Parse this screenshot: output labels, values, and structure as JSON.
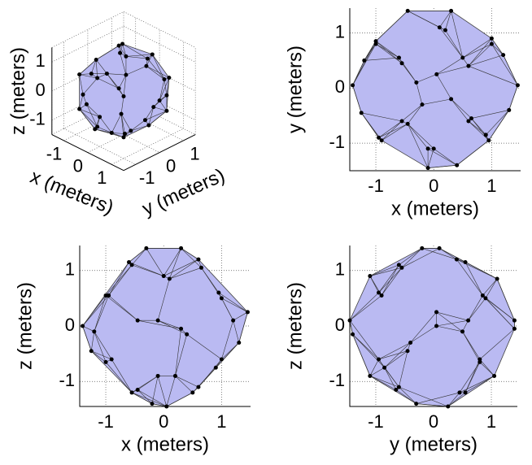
{
  "chart_data": [
    {
      "type": "scatter3d",
      "xlabel": "x (meters)",
      "ylabel": "y (meters)",
      "zlabel": "z (meters)",
      "x": [
        -1.4,
        1.45,
        -0.45,
        0.3,
        -0.1,
        0.4,
        -0.3,
        0.3,
        0.05,
        -0.2,
        1.0,
        -1.0,
        -0.95,
        0.95,
        1.0,
        -1.0,
        -0.9,
        0.9,
        0.6,
        -0.6,
        -0.55,
        0.65,
        0.5,
        -0.55,
        -0.45,
        0.6,
        1.3,
        -1.25,
        -1.2,
        1.2,
        0.1,
        0.0,
        0.2,
        -0.1
      ],
      "y": [
        0.05,
        0.05,
        1.4,
        1.4,
        -1.45,
        -1.4,
        0.1,
        -0.2,
        0.25,
        -0.3,
        0.9,
        0.85,
        -0.9,
        -0.95,
        0.8,
        0.8,
        -0.95,
        -0.85,
        0.4,
        0.55,
        -0.6,
        -0.55,
        0.55,
        0.45,
        -0.65,
        -0.6,
        -0.4,
        -0.45,
        0.5,
        0.6,
        1.1,
        -1.1,
        1.05,
        -1.1
      ],
      "z": [
        0.0,
        0.25,
        0.1,
        -0.05,
        0.1,
        -0.15,
        1.4,
        1.4,
        -1.45,
        -1.4,
        0.5,
        0.55,
        0.55,
        0.6,
        -0.6,
        -0.65,
        -0.6,
        -0.75,
        1.2,
        1.15,
        1.1,
        1.05,
        -1.2,
        -1.2,
        -1.15,
        -1.1,
        -0.3,
        -0.45,
        -0.1,
        0.1,
        0.85,
        0.9,
        -0.9,
        -0.9
      ],
      "xlim": [
        -1.5,
        1.5
      ],
      "ylim": [
        -1.5,
        1.5
      ],
      "zlim": [
        -1.5,
        1.5
      ],
      "xticks": [
        -1,
        0,
        1
      ],
      "yticks": [
        -1,
        0,
        1
      ],
      "zticks": [
        -1,
        0,
        1
      ],
      "color": "#babaf2",
      "grid": true
    },
    {
      "type": "scatter",
      "xlabel": "x (meters)",
      "ylabel": "y (meters)",
      "x": [
        -1.4,
        1.45,
        -0.45,
        0.3,
        -0.1,
        0.4,
        -0.3,
        0.3,
        0.05,
        -0.2,
        1.0,
        -1.0,
        -0.95,
        0.95,
        1.0,
        -1.0,
        -0.9,
        0.9,
        0.6,
        -0.6,
        -0.55,
        0.65,
        0.5,
        -0.55,
        -0.45,
        0.6,
        1.3,
        -1.25,
        -1.2,
        1.2,
        0.1,
        0.0,
        0.2,
        -0.1
      ],
      "values": [
        0.05,
        0.05,
        1.4,
        1.4,
        -1.45,
        -1.4,
        0.1,
        -0.2,
        0.25,
        -0.3,
        0.9,
        0.85,
        -0.9,
        -0.95,
        0.8,
        0.8,
        -0.95,
        -0.85,
        0.4,
        0.55,
        -0.6,
        -0.55,
        0.55,
        0.45,
        -0.65,
        -0.6,
        -0.4,
        -0.45,
        0.5,
        0.6,
        1.1,
        -1.1,
        1.05,
        -1.1
      ],
      "xlim": [
        -1.45,
        1.5
      ],
      "ylim": [
        -1.5,
        1.45
      ],
      "xticks": [
        -1,
        0,
        1
      ],
      "yticks": [
        -1,
        0,
        1
      ],
      "color": "#babaf2",
      "grid": true
    },
    {
      "type": "scatter",
      "xlabel": "x (meters)",
      "ylabel": "z (meters)",
      "x": [
        -1.4,
        1.45,
        -0.45,
        0.3,
        -0.1,
        0.4,
        -0.3,
        0.3,
        0.05,
        -0.2,
        1.0,
        -1.0,
        -0.95,
        0.95,
        1.0,
        -1.0,
        -0.9,
        0.9,
        0.6,
        -0.6,
        -0.55,
        0.65,
        0.5,
        -0.55,
        -0.45,
        0.6,
        1.3,
        -1.25,
        -1.2,
        1.2,
        0.1,
        0.0,
        0.2,
        -0.1
      ],
      "values": [
        0.0,
        0.25,
        0.1,
        -0.05,
        0.1,
        -0.15,
        1.4,
        1.4,
        -1.45,
        -1.4,
        0.5,
        0.55,
        0.55,
        0.6,
        -0.6,
        -0.65,
        -0.6,
        -0.75,
        1.2,
        1.15,
        1.1,
        1.05,
        -1.2,
        -1.2,
        -1.15,
        -1.1,
        -0.3,
        -0.45,
        -0.1,
        0.1,
        0.85,
        0.9,
        -0.9,
        -0.9
      ],
      "xlim": [
        -1.45,
        1.5
      ],
      "ylim": [
        -1.45,
        1.45
      ],
      "xticks": [
        -1,
        0,
        1
      ],
      "yticks": [
        -1,
        0,
        1
      ],
      "color": "#babaf2",
      "grid": true
    },
    {
      "type": "scatter",
      "xlabel": "y (meters)",
      "ylabel": "z (meters)",
      "x": [
        0.05,
        0.05,
        1.4,
        1.4,
        -1.45,
        -1.4,
        0.1,
        -0.2,
        0.25,
        -0.3,
        0.9,
        0.85,
        -0.9,
        -0.95,
        0.8,
        0.8,
        -0.95,
        -0.85,
        0.4,
        0.55,
        -0.6,
        -0.55,
        0.55,
        0.45,
        -0.65,
        -0.6,
        -0.4,
        -0.45,
        0.5,
        0.6,
        1.1,
        -1.1,
        1.05,
        -1.1
      ],
      "values": [
        0.0,
        0.25,
        0.1,
        -0.05,
        0.1,
        -0.15,
        1.4,
        1.4,
        -1.45,
        -1.4,
        0.5,
        0.55,
        0.55,
        0.6,
        -0.6,
        -0.65,
        -0.6,
        -0.75,
        1.2,
        1.15,
        1.1,
        1.05,
        -1.2,
        -1.2,
        -1.15,
        -1.1,
        -0.3,
        -0.45,
        -0.1,
        0.1,
        0.85,
        0.9,
        -0.9,
        -0.9
      ],
      "xlim": [
        -1.45,
        1.45
      ],
      "ylim": [
        -1.45,
        1.45
      ],
      "xticks": [
        -1,
        0,
        1
      ],
      "yticks": [
        -1,
        0,
        1
      ],
      "color": "#babaf2",
      "grid": true
    }
  ]
}
